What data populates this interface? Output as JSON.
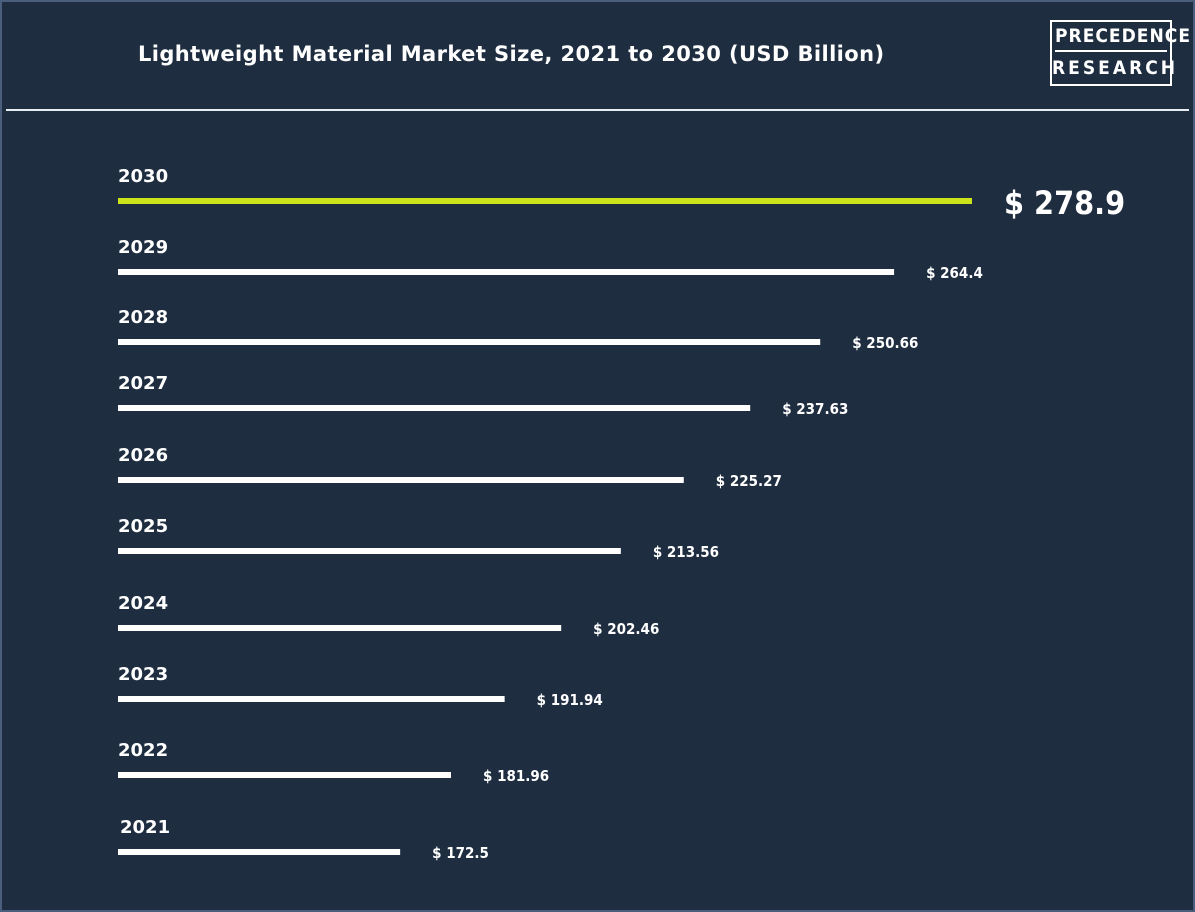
{
  "header": {
    "title": "Lightweight Material Market Size, 2021 to 2030 (USD Billion)",
    "logo_line1": "PRECEDENCE",
    "logo_line2": "RESEARCH"
  },
  "colors": {
    "background": "#1e2d40",
    "bar": "#ffffff",
    "highlight_bar": "#cde31a",
    "text": "#ffffff"
  },
  "chart_data": {
    "type": "bar",
    "orientation": "horizontal",
    "title": "Lightweight Material Market Size, 2021 to 2030 (USD Billion)",
    "categories": [
      "2030",
      "2029",
      "2028",
      "2027",
      "2026",
      "2025",
      "2024",
      "2023",
      "2022",
      "2021"
    ],
    "values": [
      278.9,
      264.4,
      250.66,
      237.63,
      225.27,
      213.56,
      202.46,
      191.94,
      181.96,
      172.5
    ],
    "value_labels": [
      "$ 278.9",
      "$ 264.4",
      "$ 250.66",
      "$ 237.63",
      "$ 225.27",
      "$ 213.56",
      "$ 202.46",
      "$ 191.94",
      "$ 181.96",
      "$ 172.5"
    ],
    "highlight_category": "2030",
    "unit": "USD Billion",
    "grid": false,
    "legend": "none"
  }
}
